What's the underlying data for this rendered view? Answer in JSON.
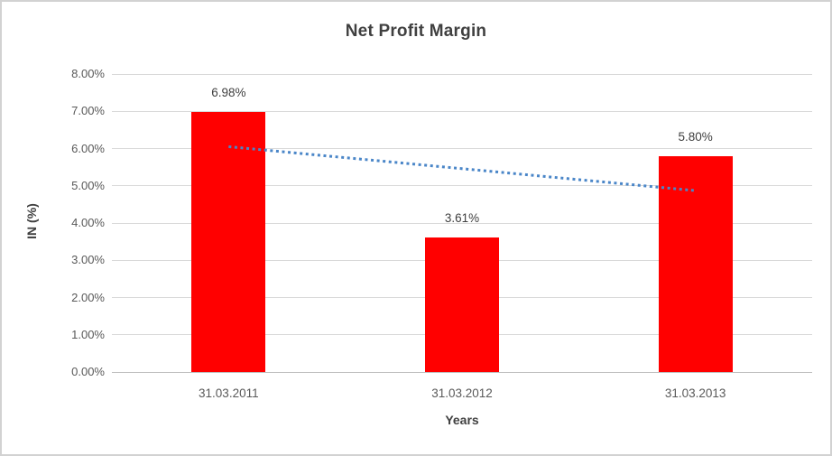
{
  "chart": {
    "title": "Net Profit Margin",
    "xlabel": "Years",
    "ylabel": "IN (%)"
  },
  "chart_data": {
    "type": "bar",
    "title": "Net Profit Margin",
    "xlabel": "Years",
    "ylabel": "IN (%)",
    "categories": [
      "31.03.2011",
      "31.03.2012",
      "31.03.2013"
    ],
    "values": [
      6.98,
      3.61,
      5.8
    ],
    "data_labels": [
      "6.98%",
      "3.61%",
      "5.80%"
    ],
    "ylim": [
      0,
      8
    ],
    "ytick_step": 1,
    "ytick_labels": [
      "0.00%",
      "1.00%",
      "2.00%",
      "3.00%",
      "4.00%",
      "5.00%",
      "6.00%",
      "7.00%",
      "8.00%"
    ],
    "grid": true,
    "legend": "none",
    "trendline": {
      "type": "linear",
      "style": "dotted",
      "start_value": 6.05,
      "end_value": 4.87
    },
    "colors": {
      "bar": "#FF0000",
      "trendline": "#4A86C8",
      "gridline": "#D9D9D9",
      "axis_line": "#BFBFBF",
      "tick_text": "#595959",
      "label_text": "#404040",
      "title_text": "#404040",
      "frame_border": "#D2D2D2"
    }
  }
}
